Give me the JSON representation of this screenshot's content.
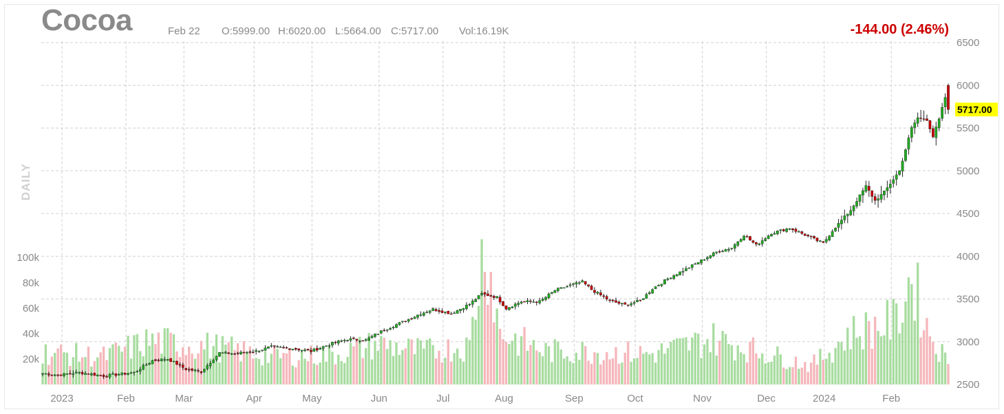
{
  "header": {
    "symbol": "Cocoa",
    "date": "Feb 22",
    "open": "O:5999.00",
    "high": "H:6020.00",
    "low": "L:5664.00",
    "close": "C:5717.00",
    "volume": "Vol:16.19K",
    "change": "-144.00 (2.46%)",
    "period": "DAILY",
    "last_price_tag": "5717.00"
  },
  "colors": {
    "up": "#22aa22",
    "down": "#cc0000",
    "vol_up": "#a8dca0",
    "vol_down": "#f5b7bb",
    "grid": "#d0d0d0",
    "last_tag": "#ffff00"
  },
  "chart_data": {
    "type": "candlestick",
    "price_axis": {
      "min": 2500,
      "max": 6500,
      "ticks": [
        2500,
        3000,
        3500,
        4000,
        4500,
        5000,
        5500,
        6000,
        6500
      ]
    },
    "volume_axis": {
      "min": 0,
      "max": 110000,
      "ticks": [
        20000,
        40000,
        60000,
        80000,
        100000
      ],
      "tick_labels": [
        "20k",
        "40k",
        "60k",
        "80k",
        "100k"
      ]
    },
    "x_labels": [
      "2023",
      "Feb",
      "Mar",
      "Apr",
      "May",
      "Jun",
      "Jul",
      "Aug",
      "Sep",
      "Oct",
      "Nov",
      "Dec",
      "2024",
      "Feb"
    ],
    "x_label_positions": [
      0,
      21,
      40,
      63,
      82,
      104,
      125,
      145,
      168,
      188,
      210,
      231,
      250,
      272
    ],
    "grid": true,
    "last_price": 5717,
    "close_anchors": [
      [
        0,
        2630
      ],
      [
        5,
        2610
      ],
      [
        12,
        2640
      ],
      [
        20,
        2600
      ],
      [
        30,
        2640
      ],
      [
        36,
        2780
      ],
      [
        41,
        2800
      ],
      [
        47,
        2680
      ],
      [
        52,
        2650
      ],
      [
        58,
        2870
      ],
      [
        63,
        2860
      ],
      [
        70,
        2890
      ],
      [
        75,
        2940
      ],
      [
        82,
        2920
      ],
      [
        88,
        2890
      ],
      [
        95,
        2980
      ],
      [
        100,
        3030
      ],
      [
        106,
        3020
      ],
      [
        112,
        3140
      ],
      [
        118,
        3230
      ],
      [
        124,
        3330
      ],
      [
        128,
        3380
      ],
      [
        134,
        3330
      ],
      [
        140,
        3440
      ],
      [
        144,
        3560
      ],
      [
        149,
        3520
      ],
      [
        152,
        3390
      ],
      [
        157,
        3470
      ],
      [
        163,
        3470
      ],
      [
        168,
        3600
      ],
      [
        173,
        3660
      ],
      [
        177,
        3700
      ],
      [
        180,
        3610
      ],
      [
        186,
        3480
      ],
      [
        191,
        3430
      ],
      [
        196,
        3480
      ],
      [
        200,
        3620
      ],
      [
        206,
        3760
      ],
      [
        211,
        3850
      ],
      [
        216,
        3950
      ],
      [
        221,
        4050
      ],
      [
        226,
        4100
      ],
      [
        230,
        4250
      ],
      [
        234,
        4130
      ],
      [
        239,
        4270
      ],
      [
        245,
        4330
      ],
      [
        250,
        4250
      ],
      [
        256,
        4150
      ],
      [
        259,
        4300
      ],
      [
        265,
        4540
      ],
      [
        270,
        4820
      ],
      [
        273,
        4650
      ],
      [
        276,
        4750
      ],
      [
        281,
        5000
      ],
      [
        285,
        5500
      ],
      [
        287,
        5620
      ],
      [
        290,
        5600
      ],
      [
        292,
        5400
      ],
      [
        294,
        5600
      ],
      [
        296,
        5860
      ],
      [
        297,
        5717
      ]
    ],
    "volume_anchors": [
      [
        0,
        25000
      ],
      [
        20,
        22000
      ],
      [
        35,
        34000
      ],
      [
        55,
        30000
      ],
      [
        75,
        22000
      ],
      [
        95,
        23000
      ],
      [
        110,
        32000
      ],
      [
        125,
        26000
      ],
      [
        140,
        30000
      ],
      [
        145,
        115000
      ],
      [
        150,
        40000
      ],
      [
        165,
        26000
      ],
      [
        180,
        26000
      ],
      [
        200,
        24000
      ],
      [
        210,
        30000
      ],
      [
        220,
        36000
      ],
      [
        235,
        26000
      ],
      [
        252,
        15000
      ],
      [
        265,
        40000
      ],
      [
        280,
        50000
      ],
      [
        285,
        85000
      ],
      [
        290,
        45000
      ],
      [
        297,
        16190
      ]
    ]
  }
}
